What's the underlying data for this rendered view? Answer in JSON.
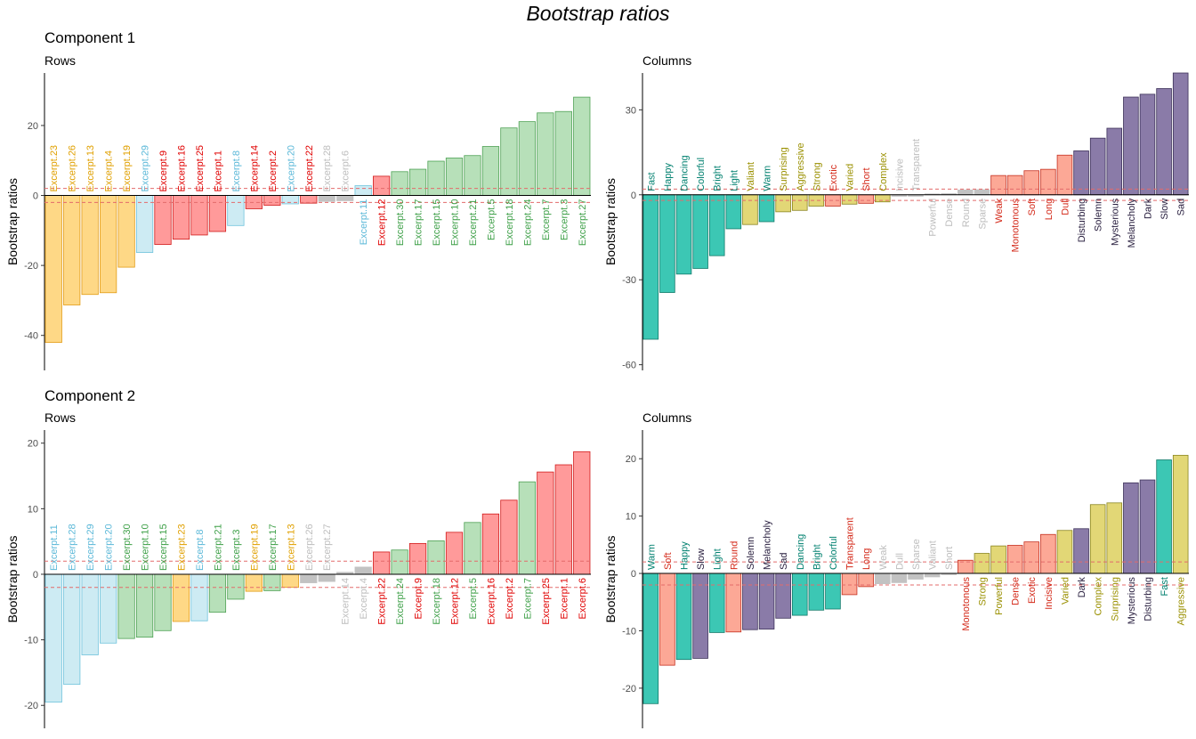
{
  "title": "Bootstrap ratios",
  "components": [
    "Component 1",
    "Component 2"
  ],
  "colors": {
    "rows_orange": {
      "fill": "#fed886",
      "stroke": "#e29c15",
      "text": "#e0a000"
    },
    "rows_cyan": {
      "fill": "#cdebf3",
      "stroke": "#6fc3dc",
      "text": "#5bb8d8"
    },
    "rows_red": {
      "fill": "#ff9a9a",
      "stroke": "#d11b1b",
      "text": "#e00000"
    },
    "rows_green": {
      "fill": "#b7e0b9",
      "stroke": "#4ea154",
      "text": "#3ea048"
    },
    "cols_teal": {
      "fill": "#3cc7b4",
      "stroke": "#127a6a",
      "text": "#00806f"
    },
    "cols_olive": {
      "fill": "#e2d776",
      "stroke": "#8a8520",
      "text": "#9a9000"
    },
    "cols_salmon": {
      "fill": "#fca896",
      "stroke": "#c53020",
      "text": "#d42a1a"
    },
    "cols_purple": {
      "fill": "#8a7ba8",
      "stroke": "#3b2f58",
      "text": "#2a2040"
    },
    "nonsig": {
      "fill": "#c2c2c2",
      "stroke": "#c2c2c2",
      "text": "#bdbdbd"
    }
  },
  "chart_data": [
    {
      "type": "bar",
      "component": "Component 1",
      "subtitle": "Rows",
      "ylabel": "Bootstrap ratios",
      "ylim": [
        -50,
        35
      ],
      "yticks": [
        -40,
        -20,
        0,
        20
      ],
      "threshold": 2,
      "categories": [
        "Excerpt.23",
        "Excerpt.26",
        "Excerpt.13",
        "Excerpt.4",
        "Excerpt.19",
        "Excerpt.29",
        "Excerpt.9",
        "Excerpt.16",
        "Excerpt.25",
        "Excerpt.1",
        "Excerpt.8",
        "Excerpt.14",
        "Excerpt.2",
        "Excerpt.20",
        "Excerpt.22",
        "Excerpt.28",
        "Excerpt.6",
        "Excerpt.11",
        "Excerpt.12",
        "Excerpt.30",
        "Excerpt.17",
        "Excerpt.15",
        "Excerpt.10",
        "Excerpt.21",
        "Excerpt.5",
        "Excerpt.18",
        "Excerpt.24",
        "Excerpt.7",
        "Excerpt.3",
        "Excerpt.27"
      ],
      "values": [
        -42,
        -31.3,
        -28.3,
        -27.8,
        -20.5,
        -16.3,
        -14,
        -12.5,
        -11.3,
        -10.3,
        -8.6,
        -3.8,
        -2.8,
        -2.4,
        -2.2,
        -1.7,
        -1.5,
        2.8,
        5.5,
        6.8,
        7.5,
        9.8,
        10.7,
        11.4,
        14,
        19.3,
        21.1,
        23.6,
        24,
        28.1
      ],
      "groups": [
        "rows_orange",
        "rows_orange",
        "rows_orange",
        "rows_orange",
        "rows_orange",
        "rows_cyan",
        "rows_red",
        "rows_red",
        "rows_red",
        "rows_red",
        "rows_cyan",
        "rows_red",
        "rows_red",
        "rows_cyan",
        "rows_red",
        "nonsig",
        "nonsig",
        "rows_cyan",
        "rows_red",
        "rows_green",
        "rows_green",
        "rows_green",
        "rows_green",
        "rows_green",
        "rows_green",
        "rows_green",
        "rows_green",
        "rows_green",
        "rows_green",
        "rows_green"
      ]
    },
    {
      "type": "bar",
      "component": "Component 1",
      "subtitle": "Columns",
      "ylabel": "Bootstrap ratios",
      "ylim": [
        -62,
        43
      ],
      "yticks": [
        -60,
        -30,
        0,
        30
      ],
      "threshold": 2,
      "categories": [
        "Fast",
        "Happy",
        "Dancing",
        "Colorful",
        "Bright",
        "Light",
        "Valiant",
        "Warm",
        "Surprising",
        "Aggressive",
        "Strong",
        "Exotic",
        "Varied",
        "Short",
        "Complex",
        "Incisive",
        "Transparent",
        "Powerful",
        "Dense",
        "Round",
        "Sparse",
        "Weak",
        "Monotonous",
        "Soft",
        "Long",
        "Dull",
        "Disturbing",
        "Solemn",
        "Mysterious",
        "Melancholy",
        "Dark",
        "Slow",
        "Sad"
      ],
      "values": [
        -51,
        -34.5,
        -28,
        -26,
        -21.5,
        -12,
        -10.5,
        -9.5,
        -6,
        -5.5,
        -4,
        -4,
        -3.3,
        -3,
        -2.5,
        -0.5,
        -0.5,
        0.3,
        0.4,
        1.7,
        1.8,
        6.8,
        6.8,
        8.5,
        9,
        14,
        15.5,
        20,
        23.5,
        34.5,
        35.5,
        37.5,
        43
      ],
      "groups": [
        "cols_teal",
        "cols_teal",
        "cols_teal",
        "cols_teal",
        "cols_teal",
        "cols_teal",
        "cols_olive",
        "cols_teal",
        "cols_olive",
        "cols_olive",
        "cols_olive",
        "cols_salmon",
        "cols_olive",
        "cols_salmon",
        "cols_olive",
        "nonsig",
        "nonsig",
        "nonsig",
        "nonsig",
        "nonsig",
        "nonsig",
        "cols_salmon",
        "cols_salmon",
        "cols_salmon",
        "cols_salmon",
        "cols_salmon",
        "cols_purple",
        "cols_purple",
        "cols_purple",
        "cols_purple",
        "cols_purple",
        "cols_purple",
        "cols_purple"
      ]
    },
    {
      "type": "bar",
      "component": "Component 2",
      "subtitle": "Rows",
      "ylabel": "Bootstrap ratios",
      "ylim": [
        -23.5,
        22
      ],
      "yticks": [
        -20,
        -10,
        0,
        10,
        20
      ],
      "threshold": 2,
      "categories": [
        "Excerpt.11",
        "Excerpt.28",
        "Excerpt.29",
        "Excerpt.20",
        "Excerpt.30",
        "Excerpt.10",
        "Excerpt.15",
        "Excerpt.23",
        "Excerpt.8",
        "Excerpt.21",
        "Excerpt.3",
        "Excerpt.19",
        "Excerpt.17",
        "Excerpt.13",
        "Excerpt.26",
        "Excerpt.27",
        "Excerpt.14",
        "Excerpt.4",
        "Excerpt.22",
        "Excerpt.24",
        "Excerpt.9",
        "Excerpt.18",
        "Excerpt.12",
        "Excerpt.5",
        "Excerpt.16",
        "Excerpt.2",
        "Excerpt.7",
        "Excerpt.25",
        "Excerpt.1",
        "Excerpt.6"
      ],
      "values": [
        -19.5,
        -16.8,
        -12.3,
        -10.5,
        -9.8,
        -9.6,
        -8.6,
        -7.2,
        -7.1,
        -5.8,
        -3.8,
        -2.6,
        -2.5,
        -2,
        -1.3,
        -1.1,
        0.3,
        1.1,
        3.4,
        3.7,
        4.7,
        5.1,
        6.4,
        7.9,
        9.2,
        11.3,
        14.1,
        15.6,
        16.7,
        18.7
      ],
      "groups": [
        "rows_cyan",
        "rows_cyan",
        "rows_cyan",
        "rows_cyan",
        "rows_green",
        "rows_green",
        "rows_green",
        "rows_orange",
        "rows_cyan",
        "rows_green",
        "rows_green",
        "rows_orange",
        "rows_green",
        "rows_orange",
        "nonsig",
        "nonsig",
        "nonsig",
        "nonsig",
        "rows_red",
        "rows_green",
        "rows_red",
        "rows_green",
        "rows_red",
        "rows_green",
        "rows_red",
        "rows_red",
        "rows_green",
        "rows_red",
        "rows_red",
        "rows_red"
      ]
    },
    {
      "type": "bar",
      "component": "Component 2",
      "subtitle": "Columns",
      "ylabel": "Bootstrap ratios",
      "ylim": [
        -27,
        25
      ],
      "yticks": [
        -20,
        -10,
        0,
        10,
        20
      ],
      "threshold": 2,
      "categories": [
        "Warm",
        "Soft",
        "Happy",
        "Slow",
        "Light",
        "Round",
        "Solemn",
        "Melancholy",
        "Sad",
        "Dancing",
        "Bright",
        "Colorful",
        "Transparent",
        "Long",
        "Weak",
        "Dull",
        "Sparse",
        "Valiant",
        "Short",
        "Monotonous",
        "Strong",
        "Powerful",
        "Dense",
        "Exotic",
        "Incisive",
        "Varied",
        "Dark",
        "Complex",
        "Surprising",
        "Mysterious",
        "Disturbing",
        "Fast",
        "Aggressive"
      ],
      "values": [
        -22.7,
        -16,
        -15,
        -14.8,
        -10.3,
        -10.2,
        -9.8,
        -9.7,
        -7.8,
        -7.3,
        -6.4,
        -6.2,
        -3.7,
        -2.3,
        -1.8,
        -1.6,
        -1,
        -0.6,
        -0.2,
        2.3,
        3.5,
        4.8,
        4.9,
        5.5,
        6.8,
        7.5,
        7.8,
        12,
        12.3,
        15.8,
        16.3,
        19.8,
        20.6
      ],
      "groups": [
        "cols_teal",
        "cols_salmon",
        "cols_teal",
        "cols_purple",
        "cols_teal",
        "cols_salmon",
        "cols_purple",
        "cols_purple",
        "cols_purple",
        "cols_teal",
        "cols_teal",
        "cols_teal",
        "cols_salmon",
        "cols_salmon",
        "nonsig",
        "nonsig",
        "nonsig",
        "nonsig",
        "nonsig",
        "cols_salmon",
        "cols_olive",
        "cols_olive",
        "cols_salmon",
        "cols_salmon",
        "cols_salmon",
        "cols_olive",
        "cols_purple",
        "cols_olive",
        "cols_olive",
        "cols_purple",
        "cols_purple",
        "cols_teal",
        "cols_olive"
      ]
    }
  ]
}
